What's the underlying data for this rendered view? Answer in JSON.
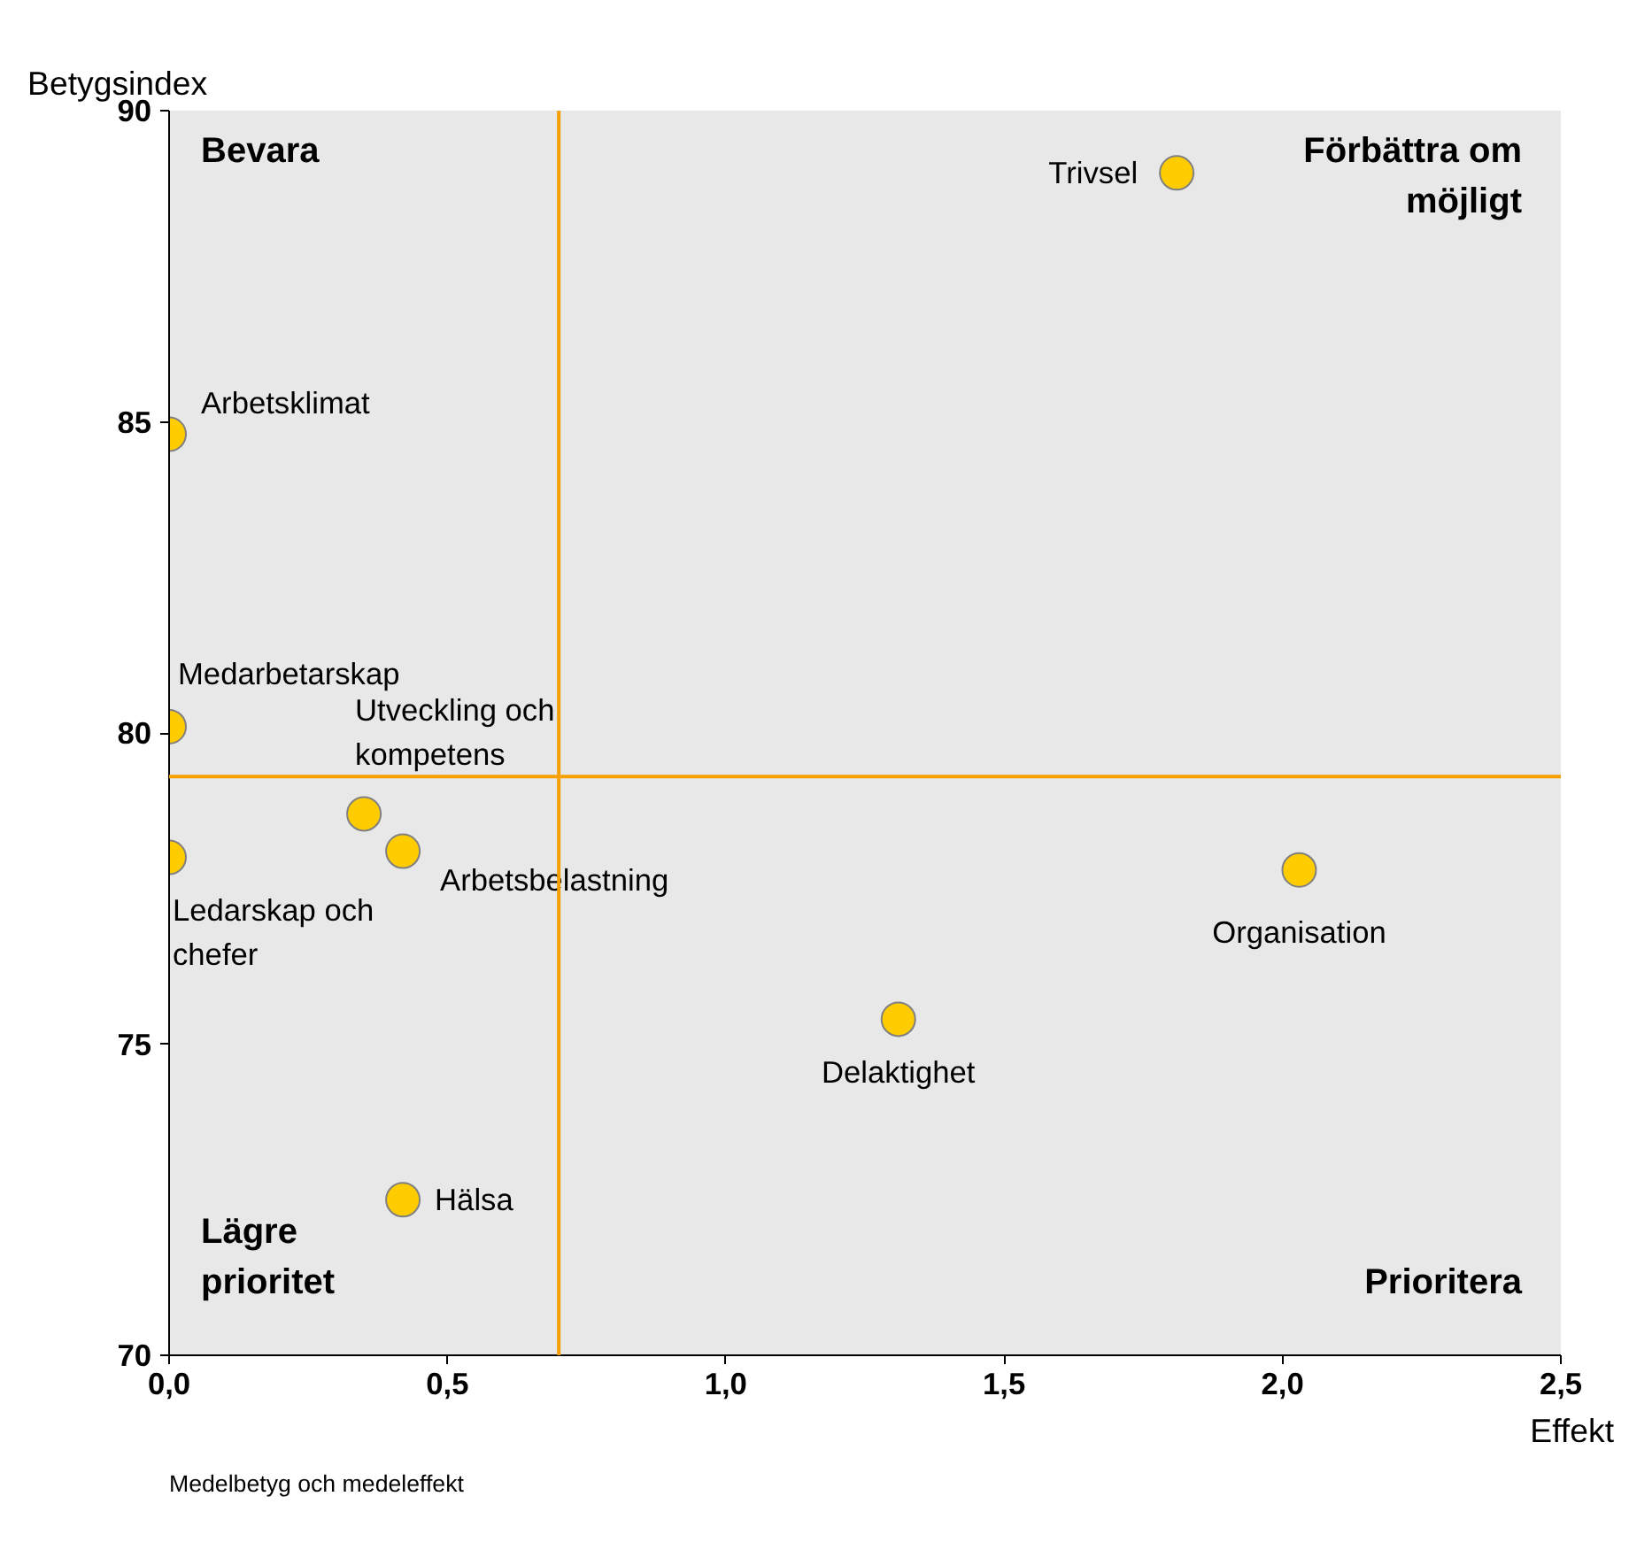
{
  "chart_data": {
    "type": "scatter",
    "xlabel": "Effekt",
    "ylabel": "Betygsindex",
    "xlim": [
      0,
      2.5
    ],
    "ylim": [
      70,
      90
    ],
    "xticks": [
      {
        "value": 0,
        "label": "0,0"
      },
      {
        "value": 0.5,
        "label": "0,5"
      },
      {
        "value": 1,
        "label": "1,0"
      },
      {
        "value": 1.5,
        "label": "1,5"
      },
      {
        "value": 2,
        "label": "2,0"
      },
      {
        "value": 2.5,
        "label": "2,5"
      }
    ],
    "yticks": [
      70,
      75,
      80,
      85,
      90
    ],
    "marker": "circle",
    "series": [
      {
        "name": "Trivsel",
        "color": "#ffcc00",
        "x": [
          1.81
        ],
        "values": [
          89.0
        ]
      },
      {
        "name": "Arbetsklimat",
        "color": "#ffcc00",
        "x": [
          0
        ],
        "values": [
          84.8
        ]
      },
      {
        "name": "Medarbetarskap",
        "color": "#ffcc00",
        "x": [
          0
        ],
        "values": [
          80.1
        ]
      },
      {
        "name": "Ledarskap och chefer",
        "color": "#ffcc00",
        "x": [
          0
        ],
        "values": [
          78.0
        ]
      },
      {
        "name": "Utveckling och kompetens",
        "color": "#ffcc00",
        "x": [
          0.35
        ],
        "values": [
          78.7
        ]
      },
      {
        "name": "Arbetsbelastning",
        "color": "#ffcc00",
        "x": [
          0.42
        ],
        "values": [
          78.1
        ]
      },
      {
        "name": "Hälsa",
        "color": "#ffcc00",
        "x": [
          0.42
        ],
        "values": [
          72.5
        ]
      },
      {
        "name": "Delaktighet",
        "color": "#ffcc00",
        "x": [
          1.31
        ],
        "values": [
          75.4
        ]
      },
      {
        "name": "Organisation",
        "color": "#ffcc00",
        "x": [
          2.03
        ],
        "values": [
          77.8
        ]
      }
    ],
    "ref_lines": [
      {
        "axis": "x",
        "value": 0.7,
        "color": "#f5a000"
      },
      {
        "axis": "y",
        "value": 79.3,
        "color": "#f5a000"
      }
    ],
    "annotations": [
      "Bevara",
      "Förbättra om möjligt",
      "Lägre prioritet",
      "Prioritera",
      "Medelbetyg och medeleffekt"
    ]
  }
}
